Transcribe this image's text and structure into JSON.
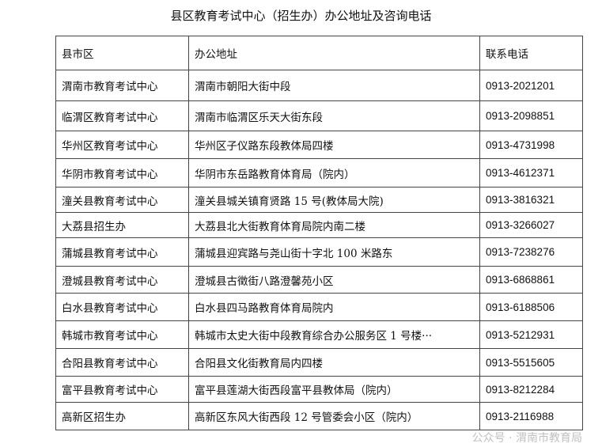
{
  "title": "县区教育考试中心（招生办）办公地址及咨询电话",
  "headers": [
    "县市区",
    "办公地址",
    "联系电话"
  ],
  "rows": [
    [
      "渭南市教育考试中心",
      "渭南市朝阳大街中段",
      "0913-2021201"
    ],
    [
      "临渭区教育考试中心",
      "渭南市临渭区乐天大街东段",
      "0913-2098851"
    ],
    [
      "华州区教育考试中心",
      "华州区子仪路东段教体局四楼",
      "0913-4731998"
    ],
    [
      "华阴市教育考试中心",
      "华阴市东岳路教育体育局（院内）",
      "0913-4612371"
    ],
    [
      "潼关县教育考试中心",
      "潼关县城关镇育贤路 15 号(教体局大院)",
      "0913-3816321"
    ],
    [
      "大荔县招生办",
      "大荔县北大街教育体育局院内南二楼",
      "0913-3266027"
    ],
    [
      "蒲城县教育考试中心",
      "蒲城县迎宾路与尧山街十字北 100 米路东",
      "0913-7238276"
    ],
    [
      "澄城县教育考试中心",
      "澄城县古徵街八路澄馨苑小区",
      "0913-6868861"
    ],
    [
      "白水县教育考试中心",
      "白水县四马路教育体育局院内",
      "0913-6188506"
    ],
    [
      "韩城市教育考试中心",
      "韩城市太史大街中段教育综合办公服务区 1 号楼···",
      "0913-5212931"
    ],
    [
      "合阳县教育考试中心",
      "合阳县文化街教育局内四楼",
      "0913-5515605"
    ],
    [
      "富平县教育考试中心",
      "富平县莲湖大街西段富平县教体局（院内）",
      "0913-8212284"
    ],
    [
      "高新区招生办",
      "高新区东风大街西段 12 号管委会小区（院内）",
      "0913-2116988"
    ]
  ],
  "watermark": "公众号 · 渭南市教育局"
}
